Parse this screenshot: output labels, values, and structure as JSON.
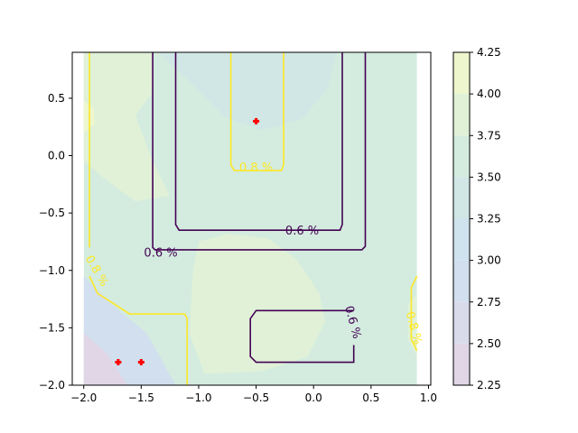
{
  "chart_data": {
    "type": "contour",
    "title": "",
    "xlabel": "",
    "ylabel": "",
    "xlim": [
      -2.1,
      1.02
    ],
    "ylim": [
      -2.0,
      0.9
    ],
    "x_ticks": [
      -2.0,
      -1.5,
      -1.0,
      -0.5,
      0.0,
      0.5,
      1.0
    ],
    "x_tick_labels": [
      "−2.0",
      "−1.5",
      "−1.0",
      "−0.5",
      "0.0",
      "0.5",
      "1.0"
    ],
    "y_ticks": [
      0.5,
      0.0,
      -0.5,
      -1.0,
      -1.5,
      -2.0
    ],
    "y_tick_labels": [
      "0.5",
      "0.0",
      "−0.5",
      "−1.0",
      "−1.5",
      "−2.0"
    ],
    "grid": false,
    "filled_contour": {
      "x_range": [
        -2.0,
        0.9
      ],
      "y_range": [
        -2.0,
        0.9
      ],
      "levels": [
        2.25,
        2.5,
        2.75,
        3.0,
        3.25,
        3.5,
        3.75,
        4.0,
        4.25
      ],
      "level_colors": [
        "#e0d6e6",
        "#d9dbeb",
        "#d1dfee",
        "#cfe3ee",
        "#d0e7e6",
        "#d3ecdf",
        "#e0f1d7",
        "#eef6cd"
      ],
      "alpha": 0.2
    },
    "colorbar": {
      "ticks": [
        4.25,
        4.0,
        3.75,
        3.5,
        3.25,
        3.0,
        2.75,
        2.5,
        2.25
      ],
      "tick_labels": [
        "4.25",
        "4.00",
        "3.75",
        "3.50",
        "3.25",
        "3.00",
        "2.75",
        "2.50",
        "2.25"
      ]
    },
    "contour_lines": [
      {
        "label": "0.6 %",
        "color": "#440154",
        "paths": [
          [
            [
              -1.4,
              0.9
            ],
            [
              -1.4,
              -0.8
            ],
            [
              -1.38,
              -0.82
            ],
            [
              0.42,
              -0.82
            ],
            [
              0.45,
              -0.79
            ],
            [
              0.45,
              0.9
            ]
          ],
          [
            [
              -1.2,
              0.9
            ],
            [
              -1.2,
              -0.6
            ],
            [
              -1.17,
              -0.65
            ],
            [
              0.23,
              -0.65
            ],
            [
              0.25,
              -0.6
            ],
            [
              0.25,
              0.9
            ]
          ],
          [
            [
              0.35,
              -1.35
            ],
            [
              -0.5,
              -1.35
            ],
            [
              -0.55,
              -1.42
            ],
            [
              -0.55,
              -1.75
            ],
            [
              -0.5,
              -1.8
            ],
            [
              0.35,
              -1.8
            ],
            [
              0.35,
              -1.65
            ]
          ]
        ],
        "label_positions": [
          [
            -1.33,
            -0.84
          ],
          [
            -0.1,
            -0.65
          ],
          [
            0.35,
            -1.45
          ]
        ]
      },
      {
        "label": "0.8 %",
        "color": "#fde725",
        "paths": [
          [
            [
              -0.72,
              0.9
            ],
            [
              -0.72,
              -0.08
            ],
            [
              -0.69,
              -0.13
            ],
            [
              -0.28,
              -0.13
            ],
            [
              -0.26,
              -0.08
            ],
            [
              -0.26,
              0.9
            ]
          ],
          [
            [
              -1.95,
              0.9
            ],
            [
              -1.95,
              -0.8
            ]
          ],
          [
            [
              -1.95,
              -1.05
            ],
            [
              -1.88,
              -1.2
            ],
            [
              -1.6,
              -1.38
            ],
            [
              -1.12,
              -1.38
            ],
            [
              -1.1,
              -1.42
            ],
            [
              -1.1,
              -2.0
            ]
          ],
          [
            [
              0.9,
              -1.05
            ],
            [
              0.85,
              -1.15
            ],
            [
              0.85,
              -1.6
            ],
            [
              0.9,
              -1.7
            ]
          ]
        ],
        "label_positions": [
          [
            -0.5,
            -0.1
          ],
          [
            -1.88,
            -1.0
          ],
          [
            0.88,
            -1.5
          ]
        ]
      }
    ],
    "points": {
      "color": "#ff0000",
      "marker": "plus",
      "data": [
        [
          -0.5,
          0.3
        ],
        [
          -1.7,
          -1.8
        ],
        [
          -1.5,
          -1.8
        ]
      ]
    }
  }
}
